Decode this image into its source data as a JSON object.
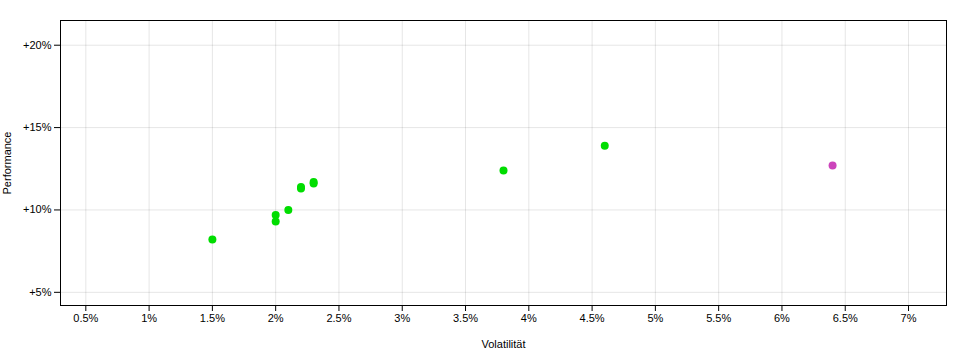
{
  "chart_data": {
    "type": "scatter",
    "xlabel": "Volatilität",
    "ylabel": "Performance",
    "xlim": [
      0.003,
      0.073
    ],
    "ylim": [
      0.042,
      0.215
    ],
    "xticks": [
      {
        "value": 0.005,
        "label": "0.5%"
      },
      {
        "value": 0.01,
        "label": "1%"
      },
      {
        "value": 0.015,
        "label": "1.5%"
      },
      {
        "value": 0.02,
        "label": "2%"
      },
      {
        "value": 0.025,
        "label": "2.5%"
      },
      {
        "value": 0.03,
        "label": "3%"
      },
      {
        "value": 0.035,
        "label": "3.5%"
      },
      {
        "value": 0.04,
        "label": "4%"
      },
      {
        "value": 0.045,
        "label": "4.5%"
      },
      {
        "value": 0.05,
        "label": "5%"
      },
      {
        "value": 0.055,
        "label": "5.5%"
      },
      {
        "value": 0.06,
        "label": "6%"
      },
      {
        "value": 0.065,
        "label": "6.5%"
      },
      {
        "value": 0.07,
        "label": "7%"
      }
    ],
    "yticks": [
      {
        "value": 0.05,
        "label": "+5%"
      },
      {
        "value": 0.1,
        "label": "+10%"
      },
      {
        "value": 0.15,
        "label": "+15%"
      },
      {
        "value": 0.2,
        "label": "+20%"
      }
    ],
    "grid": true,
    "series": [
      {
        "color": "#00dd00",
        "x": [
          0.015,
          0.02,
          0.02,
          0.021,
          0.022,
          0.023,
          0.022,
          0.023,
          0.038,
          0.046
        ],
        "values": [
          0.082,
          0.093,
          0.097,
          0.1,
          0.113,
          0.117,
          0.114,
          0.116,
          0.124,
          0.139
        ]
      },
      {
        "color": "#cc44bb",
        "x": [
          0.064
        ],
        "values": [
          0.127
        ]
      }
    ]
  }
}
